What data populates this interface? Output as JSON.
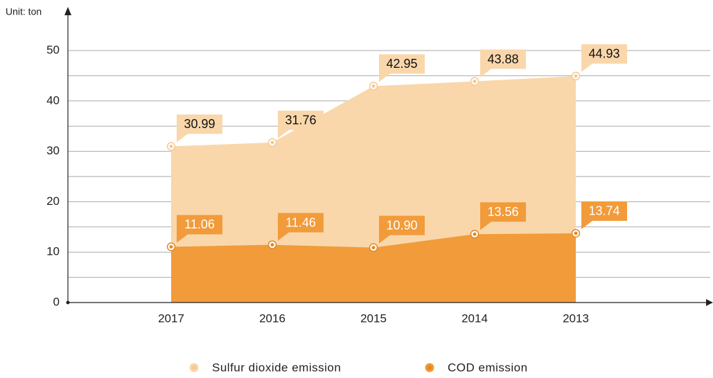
{
  "chart_data": {
    "type": "area",
    "y_unit_label": "Unit: ton",
    "categories": [
      "2017",
      "2016",
      "2015",
      "2014",
      "2013"
    ],
    "series": [
      {
        "name": "Sulfur dioxide emission",
        "color": "#f9d7ab",
        "label_color": "#f9d7ab",
        "label_text_color": "#111111",
        "values": [
          30.99,
          31.76,
          42.95,
          43.88,
          44.93
        ]
      },
      {
        "name": "COD emission",
        "color": "#f29b3a",
        "label_color": "#f29b3a",
        "label_text_color": "#ffffff",
        "values": [
          11.06,
          11.46,
          10.9,
          13.56,
          13.74
        ],
        "value_labels": [
          "11.06",
          "11.46",
          "10.90",
          "13.56",
          "13.74"
        ]
      }
    ],
    "ylim": [
      0,
      50
    ],
    "yticks": [
      0,
      10,
      20,
      30,
      40,
      50
    ],
    "minor_yticks": [
      5,
      15,
      25,
      35,
      45
    ],
    "grid": true
  }
}
